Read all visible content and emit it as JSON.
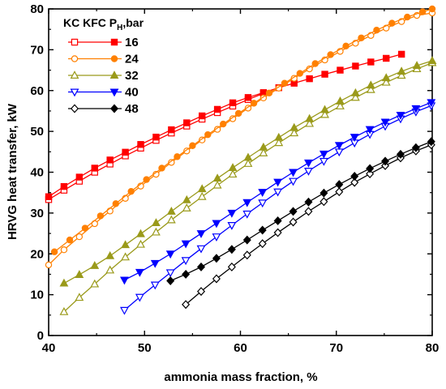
{
  "chart_data": {
    "type": "line",
    "xlabel": "ammonia mass fraction, %",
    "ylabel": "HRVG heat transfer, kW",
    "xlim": [
      40,
      80
    ],
    "ylim": [
      0,
      80
    ],
    "xticks": [
      40,
      50,
      60,
      70,
      80
    ],
    "yticks": [
      0,
      10,
      20,
      30,
      40,
      50,
      60,
      70,
      80
    ],
    "legend": {
      "title": "KC KFC P",
      "title_sub": "H",
      "title_suffix": ",bar",
      "placement": "top-left"
    },
    "series": [
      {
        "name": "16",
        "color": "#ff0000",
        "marker": "square",
        "kfc": {
          "x": [
            40,
            41.6,
            43.2,
            44.8,
            46.4,
            48.0,
            49.6,
            51.2,
            52.8,
            54.4,
            56.0,
            57.6,
            59.2,
            60.8,
            62.4,
            64.0,
            65.6,
            67.2,
            68.8,
            70.4,
            72.0,
            73.6,
            75.2,
            76.8
          ],
          "y": [
            34.0,
            36.5,
            38.8,
            41.0,
            43.0,
            44.9,
            46.8,
            48.6,
            50.4,
            52.1,
            53.8,
            55.4,
            57.0,
            58.3,
            59.5,
            60.7,
            61.8,
            62.9,
            64.0,
            65.0,
            66.0,
            67.0,
            67.9,
            68.9
          ]
        },
        "kc": {
          "x": [
            40,
            41.6,
            43.2,
            44.8,
            46.4,
            48.0,
            49.6,
            51.2,
            52.8,
            54.4,
            56.0,
            57.6,
            59.2,
            60.8,
            62.4
          ],
          "y": [
            33.3,
            35.6,
            37.8,
            40.0,
            42.0,
            44.0,
            45.9,
            47.8,
            49.6,
            51.3,
            53.0,
            54.6,
            56.2,
            57.8,
            59.3
          ]
        }
      },
      {
        "name": "24",
        "color": "#ff8000",
        "marker": "circle",
        "kfc": {
          "x": [
            40.6,
            42.2,
            43.8,
            45.4,
            47.0,
            48.6,
            50.2,
            51.8,
            53.4,
            55.0,
            56.6,
            58.2,
            59.8,
            61.4,
            63.0,
            64.6,
            66.2,
            67.8,
            69.4,
            71.0,
            72.6,
            74.2,
            75.8,
            77.4,
            79.0,
            80.0
          ],
          "y": [
            20.5,
            23.4,
            26.3,
            29.3,
            32.3,
            35.3,
            38.2,
            41.0,
            43.8,
            46.5,
            49.2,
            51.8,
            54.4,
            56.9,
            59.4,
            61.8,
            64.2,
            66.6,
            68.8,
            70.9,
            72.9,
            74.8,
            76.5,
            78.0,
            79.3,
            80.0
          ]
        },
        "kc": {
          "x": [
            40,
            41.6,
            43.2,
            44.8,
            46.4,
            48.0,
            49.6,
            51.2,
            52.8,
            54.4,
            56.0,
            57.6,
            59.2,
            60.8,
            62.4,
            64.0,
            65.6,
            67.2,
            68.8,
            70.4,
            72.0,
            73.6,
            75.2,
            76.8,
            78.4,
            80.0
          ],
          "y": [
            17.3,
            21.0,
            24.2,
            27.4,
            30.5,
            33.6,
            36.6,
            39.5,
            42.4,
            45.2,
            47.9,
            50.5,
            53.1,
            55.7,
            58.2,
            60.6,
            63.0,
            65.3,
            67.5,
            69.6,
            71.6,
            73.5,
            75.3,
            76.9,
            78.4,
            79.0
          ]
        }
      },
      {
        "name": "32",
        "color": "#9a9a1a",
        "marker": "triangle-up",
        "kfc": {
          "x": [
            41.6,
            43.2,
            44.8,
            46.4,
            48.0,
            49.6,
            51.2,
            52.8,
            54.4,
            56.0,
            57.6,
            59.2,
            60.8,
            62.4,
            64.0,
            65.6,
            67.2,
            68.8,
            70.4,
            72.0,
            73.6,
            75.2,
            76.8,
            78.4,
            80.0
          ],
          "y": [
            12.8,
            14.9,
            17.1,
            19.5,
            22.2,
            24.9,
            27.6,
            30.4,
            33.2,
            35.9,
            38.5,
            41.1,
            43.6,
            46.1,
            48.5,
            50.9,
            53.1,
            55.3,
            57.4,
            59.4,
            61.3,
            63.1,
            64.7,
            66.1,
            67.3
          ]
        },
        "kc": {
          "x": [
            41.6,
            43.2,
            44.8,
            46.4,
            48.0,
            49.6,
            51.2,
            52.8,
            54.4,
            56.0,
            57.6,
            59.2,
            60.8,
            62.4,
            64.0,
            65.6,
            67.2,
            68.8,
            70.4,
            72.0,
            73.6,
            75.2,
            76.8,
            78.4,
            80.0
          ],
          "y": [
            5.8,
            9.3,
            12.6,
            16.0,
            19.2,
            22.3,
            25.3,
            28.3,
            31.2,
            34.0,
            36.8,
            39.5,
            42.1,
            44.7,
            47.2,
            49.6,
            51.9,
            54.1,
            56.2,
            58.3,
            60.2,
            62.0,
            63.7,
            65.3,
            66.8
          ]
        }
      },
      {
        "name": "40",
        "color": "#0000ff",
        "marker": "triangle-down",
        "kfc": {
          "x": [
            47.9,
            49.5,
            51.1,
            52.7,
            54.3,
            55.9,
            57.5,
            59.1,
            60.7,
            62.3,
            63.9,
            65.5,
            67.1,
            68.7,
            70.3,
            71.9,
            73.5,
            75.1,
            76.7,
            78.3,
            79.9
          ],
          "y": [
            13.6,
            15.5,
            17.7,
            20.0,
            22.5,
            25.0,
            27.5,
            30.0,
            32.6,
            35.1,
            37.6,
            40.0,
            42.3,
            44.5,
            46.6,
            48.6,
            50.5,
            52.3,
            54.0,
            55.6,
            57.1
          ]
        },
        "kc": {
          "x": [
            47.9,
            49.5,
            51.1,
            52.7,
            54.3,
            55.9,
            57.5,
            59.1,
            60.7,
            62.3,
            63.9,
            65.5,
            67.1,
            68.7,
            70.3,
            71.9,
            73.5,
            75.1,
            76.7,
            78.3,
            79.9
          ],
          "y": [
            6.2,
            9.4,
            12.4,
            15.4,
            18.4,
            21.3,
            24.2,
            27.0,
            29.8,
            32.5,
            35.2,
            37.8,
            40.3,
            42.7,
            45.0,
            47.2,
            49.3,
            51.3,
            53.1,
            54.8,
            56.3
          ]
        }
      },
      {
        "name": "48",
        "color": "#000000",
        "marker": "diamond",
        "kfc": {
          "x": [
            52.7,
            54.3,
            55.9,
            57.5,
            59.1,
            60.7,
            62.3,
            63.9,
            65.5,
            67.1,
            68.7,
            70.3,
            71.9,
            73.5,
            75.1,
            76.7,
            78.3,
            79.9
          ],
          "y": [
            13.4,
            15.0,
            16.8,
            18.9,
            21.1,
            23.4,
            25.8,
            28.1,
            30.4,
            32.7,
            34.9,
            37.0,
            39.0,
            40.9,
            42.7,
            44.4,
            46.0,
            47.5
          ]
        },
        "kc": {
          "x": [
            54.3,
            55.9,
            57.5,
            59.1,
            60.7,
            62.3,
            63.9,
            65.5,
            67.1,
            68.7,
            70.3,
            71.9,
            73.5,
            75.1,
            76.7,
            78.3,
            79.9
          ],
          "y": [
            7.6,
            10.8,
            13.9,
            16.8,
            19.7,
            22.5,
            25.2,
            27.8,
            30.4,
            32.8,
            35.2,
            37.5,
            39.6,
            41.6,
            43.5,
            45.2,
            46.7
          ]
        }
      }
    ]
  }
}
